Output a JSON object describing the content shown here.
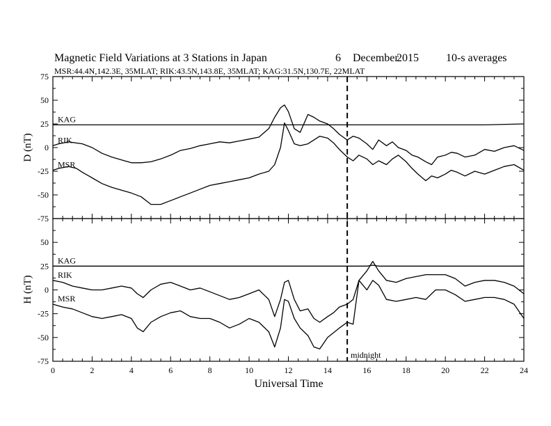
{
  "header": {
    "title_left": "Magnetic Field Variations at 3 Stations in Japan",
    "title_day": "6",
    "title_month": "December",
    "title_year": "2015",
    "title_avg": "10-s averages",
    "subtitle": "MSR:44.4N,142.3E, 35MLAT;  RIK:43.5N,143.8E, 35MLAT;  KAG:31.5N,130.7E, 22MLAT"
  },
  "annotations": {
    "midnight_label": "midnight",
    "midnight_x": 15
  },
  "chart_data": [
    {
      "type": "line",
      "panel": "top",
      "ylabel": "D (nT)",
      "xlabel": "",
      "xlim": [
        0,
        24
      ],
      "ylim": [
        -75,
        75
      ],
      "yticks": [
        -75,
        -50,
        -25,
        0,
        25,
        50,
        75
      ],
      "ytick_labels": [
        "-75",
        "-50",
        "-25",
        "0",
        "25",
        "50",
        "75"
      ],
      "grid": false,
      "series": [
        {
          "name": "KAG",
          "x": [
            0,
            2,
            4,
            6,
            8,
            10,
            11,
            11.8,
            12.5,
            13.5,
            15,
            16,
            18,
            20,
            22,
            24
          ],
          "y": [
            24,
            24,
            24,
            24,
            24,
            24,
            24,
            24,
            24,
            24,
            24,
            24,
            24,
            24,
            24,
            25
          ]
        },
        {
          "name": "RIK",
          "x": [
            0,
            0.3,
            0.8,
            1.5,
            2,
            2.5,
            3,
            3.5,
            4,
            4.5,
            5,
            5.5,
            6,
            6.5,
            7,
            7.5,
            8,
            8.5,
            9,
            9.5,
            10,
            10.5,
            11,
            11.3,
            11.6,
            11.8,
            12,
            12.3,
            12.6,
            13,
            13.3,
            13.6,
            14,
            14.3,
            14.6,
            15,
            15.3,
            15.6,
            16,
            16.3,
            16.6,
            17,
            17.3,
            17.6,
            18,
            18.3,
            18.6,
            19,
            19.3,
            19.6,
            20,
            20.3,
            20.6,
            21,
            21.5,
            22,
            22.5,
            23,
            23.5,
            24
          ],
          "y": [
            2,
            4,
            6,
            4,
            0,
            -6,
            -10,
            -13,
            -16,
            -16,
            -15,
            -12,
            -8,
            -3,
            -1,
            2,
            4,
            6,
            5,
            7,
            9,
            11,
            20,
            32,
            42,
            45,
            38,
            20,
            16,
            35,
            32,
            28,
            25,
            20,
            14,
            8,
            12,
            10,
            4,
            -2,
            8,
            2,
            6,
            0,
            -3,
            -8,
            -10,
            -15,
            -18,
            -10,
            -8,
            -5,
            -6,
            -10,
            -8,
            -2,
            -4,
            0,
            2,
            -3
          ]
        },
        {
          "name": "MSR",
          "x": [
            0,
            0.3,
            0.8,
            1.2,
            1.5,
            2,
            2.5,
            3,
            3.5,
            4,
            4.5,
            5,
            5.5,
            6,
            6.5,
            7,
            7.5,
            8,
            8.5,
            9,
            9.5,
            10,
            10.5,
            11,
            11.3,
            11.6,
            11.8,
            12,
            12.3,
            12.6,
            13,
            13.3,
            13.6,
            14,
            14.3,
            14.6,
            15,
            15.3,
            15.6,
            16,
            16.3,
            16.6,
            17,
            17.3,
            17.6,
            18,
            18.3,
            18.6,
            19,
            19.3,
            19.6,
            20,
            20.3,
            20.6,
            21,
            21.5,
            22,
            22.5,
            23,
            23.5,
            24
          ],
          "y": [
            -24,
            -22,
            -20,
            -22,
            -26,
            -32,
            -38,
            -42,
            -45,
            -48,
            -52,
            -60,
            -60,
            -56,
            -52,
            -48,
            -44,
            -40,
            -38,
            -36,
            -34,
            -32,
            -28,
            -25,
            -18,
            0,
            26,
            18,
            4,
            2,
            4,
            8,
            12,
            10,
            5,
            -2,
            -10,
            -14,
            -8,
            -12,
            -18,
            -14,
            -18,
            -12,
            -8,
            -15,
            -22,
            -28,
            -35,
            -30,
            -32,
            -28,
            -24,
            -26,
            -30,
            -25,
            -28,
            -24,
            -20,
            -18,
            -24
          ]
        }
      ]
    },
    {
      "type": "line",
      "panel": "bottom",
      "ylabel": "H (nT)",
      "xlabel": "Universal Time",
      "xlim": [
        0,
        24
      ],
      "ylim": [
        -75,
        75
      ],
      "yticks": [
        -75,
        -50,
        -25,
        0,
        25,
        50,
        75
      ],
      "ytick_labels": [
        "-75",
        "-50",
        "-25",
        "0",
        "25",
        "50",
        "75"
      ],
      "xticks": [
        0,
        2,
        4,
        6,
        8,
        10,
        12,
        14,
        16,
        18,
        20,
        22,
        24
      ],
      "xtick_labels": [
        "0",
        "2",
        "4",
        "6",
        "8",
        "10",
        "12",
        "14",
        "16",
        "18",
        "20",
        "22",
        "24"
      ],
      "grid": false,
      "series": [
        {
          "name": "KAG",
          "x": [
            0,
            2,
            4,
            6,
            8,
            10,
            12,
            14,
            16,
            16.3,
            16.6,
            18,
            20,
            22,
            24
          ],
          "y": [
            25,
            25,
            25,
            25,
            25,
            25,
            25,
            25,
            25,
            26,
            25,
            25,
            25,
            25,
            25
          ]
        },
        {
          "name": "RIK",
          "x": [
            0,
            0.5,
            1,
            1.5,
            2,
            2.5,
            3,
            3.5,
            4,
            4.3,
            4.6,
            5,
            5.5,
            6,
            6.5,
            7,
            7.5,
            8,
            8.5,
            9,
            9.5,
            10,
            10.5,
            11,
            11.3,
            11.6,
            11.8,
            12,
            12.3,
            12.6,
            13,
            13.3,
            13.6,
            14,
            14.3,
            14.6,
            15,
            15.3,
            15.6,
            16,
            16.3,
            16.6,
            17,
            17.5,
            18,
            18.5,
            19,
            19.5,
            20,
            20.5,
            21,
            21.5,
            22,
            22.5,
            23,
            23.5,
            24
          ],
          "y": [
            10,
            8,
            4,
            2,
            0,
            0,
            2,
            4,
            2,
            -4,
            -8,
            0,
            6,
            8,
            4,
            0,
            2,
            -2,
            -6,
            -10,
            -8,
            -4,
            0,
            -10,
            -28,
            -10,
            8,
            10,
            -10,
            -22,
            -20,
            -30,
            -34,
            -28,
            -24,
            -18,
            -15,
            -10,
            10,
            20,
            30,
            20,
            10,
            8,
            12,
            14,
            16,
            16,
            16,
            12,
            4,
            8,
            10,
            10,
            8,
            4,
            -4
          ]
        },
        {
          "name": "MSR",
          "x": [
            0,
            0.5,
            1,
            1.5,
            2,
            2.5,
            3,
            3.5,
            4,
            4.3,
            4.6,
            5,
            5.5,
            6,
            6.5,
            7,
            7.5,
            8,
            8.5,
            9,
            9.5,
            10,
            10.5,
            11,
            11.3,
            11.6,
            11.8,
            12,
            12.3,
            12.6,
            13,
            13.3,
            13.6,
            14,
            14.3,
            14.6,
            15,
            15.3,
            15.6,
            16,
            16.3,
            16.6,
            17,
            17.5,
            18,
            18.5,
            19,
            19.5,
            20,
            20.5,
            21,
            21.5,
            22,
            22.5,
            23,
            23.5,
            24
          ],
          "y": [
            -15,
            -18,
            -20,
            -24,
            -28,
            -30,
            -28,
            -26,
            -30,
            -40,
            -44,
            -34,
            -28,
            -24,
            -22,
            -28,
            -30,
            -30,
            -34,
            -40,
            -36,
            -30,
            -34,
            -44,
            -60,
            -40,
            -10,
            -12,
            -30,
            -40,
            -48,
            -60,
            -62,
            -50,
            -45,
            -40,
            -34,
            -36,
            10,
            0,
            10,
            5,
            -10,
            -12,
            -10,
            -8,
            -10,
            0,
            0,
            -5,
            -12,
            -10,
            -8,
            -8,
            -10,
            -15,
            -30
          ]
        }
      ]
    }
  ]
}
